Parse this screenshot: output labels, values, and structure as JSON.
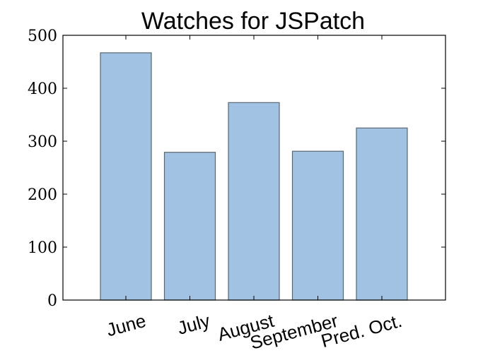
{
  "chart_data": {
    "type": "bar",
    "title": "Watches for JSPatch",
    "categories": [
      "June",
      "July",
      "August",
      "September",
      "Pred. Oct."
    ],
    "values": [
      467,
      279,
      373,
      281,
      325
    ],
    "xlabel": "",
    "ylabel": "",
    "ylim": [
      0,
      500
    ],
    "yticks": [
      "0",
      "100",
      "200",
      "300",
      "400",
      "500"
    ],
    "grid": false,
    "legend": "none",
    "bar_color": "#a1c2e3",
    "bar_edge_color": "#5a6670"
  }
}
